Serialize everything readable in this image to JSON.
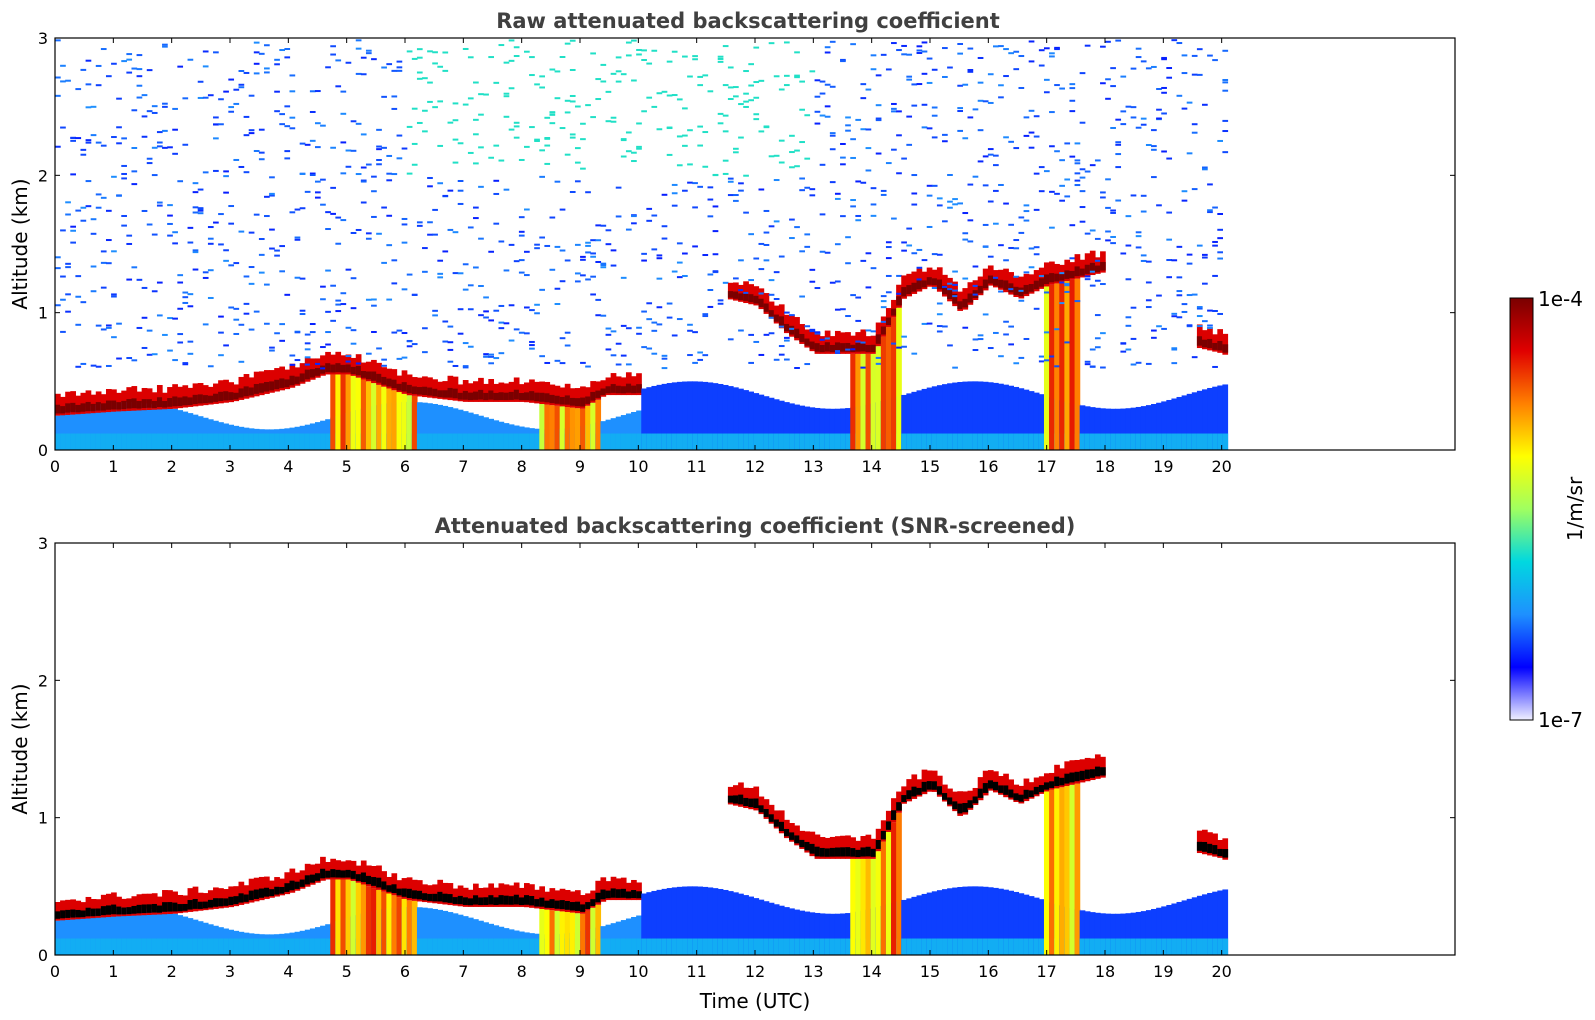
{
  "chart_data": [
    {
      "type": "heatmap",
      "title": "Raw attenuated backscattering coefficient",
      "xlabel": "",
      "ylabel": "Altitude (km)",
      "xlim": [
        0,
        24
      ],
      "ylim": [
        0,
        3
      ],
      "x_ticks": [
        "0",
        "1",
        "2",
        "3",
        "4",
        "5",
        "6",
        "7",
        "8",
        "9",
        "10",
        "11",
        "12",
        "13",
        "14",
        "15",
        "16",
        "17",
        "18",
        "19",
        "20"
      ],
      "y_ticks": [
        "0",
        "1",
        "2",
        "3"
      ],
      "data_end_time": 20.1,
      "cloud_layer": {
        "time": [
          0,
          1,
          2,
          3,
          4,
          4.6,
          5,
          6,
          7,
          8,
          9,
          9.4,
          10,
          11,
          11.5,
          12,
          12.5,
          13,
          13.5,
          14,
          14.5,
          15,
          15.5,
          16,
          16.5,
          17,
          17.5,
          18,
          18.5,
          19,
          19.5,
          20,
          20.1
        ],
        "altitude_km": [
          0.25,
          0.28,
          0.3,
          0.35,
          0.45,
          0.55,
          0.55,
          0.4,
          0.35,
          0.35,
          0.3,
          0.4,
          0.4,
          null,
          1.1,
          1.05,
          0.85,
          0.7,
          0.7,
          0.7,
          1.1,
          1.2,
          1.0,
          1.2,
          1.1,
          1.2,
          1.25,
          1.3,
          null,
          null,
          0.75,
          0.7,
          0.65
        ]
      }
    },
    {
      "type": "heatmap",
      "title": "Attenuated backscattering coefficient (SNR-screened)",
      "xlabel": "Time (UTC)",
      "ylabel": "Altitude (km)",
      "xlim": [
        0,
        24
      ],
      "ylim": [
        0,
        3
      ],
      "x_ticks": [
        "0",
        "1",
        "2",
        "3",
        "4",
        "5",
        "6",
        "7",
        "8",
        "9",
        "10",
        "11",
        "12",
        "13",
        "14",
        "15",
        "16",
        "17",
        "18",
        "19",
        "20"
      ],
      "y_ticks": [
        "0",
        "1",
        "2",
        "3"
      ],
      "data_end_time": 20.1,
      "cloud_layer": {
        "time": [
          0,
          1,
          2,
          3,
          4,
          4.6,
          5,
          6,
          7,
          8,
          9,
          9.4,
          10,
          11,
          11.5,
          12,
          12.5,
          13,
          13.5,
          14,
          14.5,
          15,
          15.5,
          16,
          16.5,
          17,
          17.5,
          18,
          18.5,
          19,
          19.5,
          20,
          20.1
        ],
        "altitude_km": [
          0.25,
          0.28,
          0.3,
          0.35,
          0.45,
          0.55,
          0.55,
          0.4,
          0.35,
          0.35,
          0.3,
          0.4,
          0.4,
          null,
          1.1,
          1.05,
          0.85,
          0.7,
          0.7,
          0.7,
          1.1,
          1.2,
          1.0,
          1.2,
          1.1,
          1.2,
          1.25,
          1.3,
          null,
          null,
          0.75,
          0.7,
          0.65
        ]
      }
    }
  ],
  "colorbar": {
    "label": "1/m/sr",
    "max_label": "1e-4",
    "min_label": "1e-7",
    "colormap": [
      "#f0f0ff",
      "#0000ff",
      "#1e90ff",
      "#00d8e0",
      "#a0ff60",
      "#ffff00",
      "#ff8000",
      "#e00000",
      "#7a0000"
    ]
  }
}
